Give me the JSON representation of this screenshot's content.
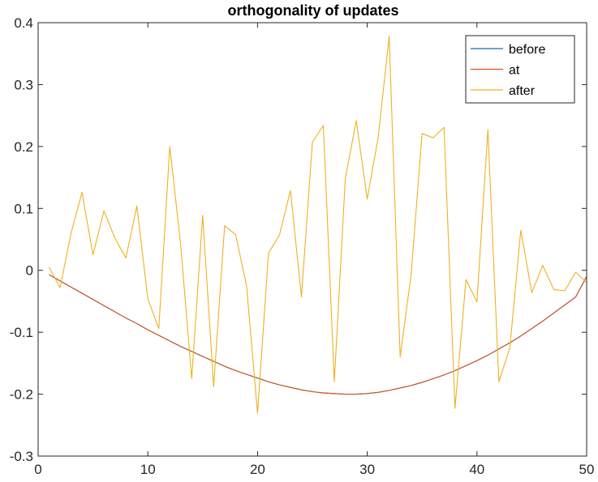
{
  "chart_data": {
    "type": "line",
    "title": "orthogonality of updates",
    "xlabel": "",
    "ylabel": "",
    "xlim": [
      0,
      50
    ],
    "ylim": [
      -0.3,
      0.4
    ],
    "xticks": [
      "0",
      "10",
      "20",
      "30",
      "40",
      "50"
    ],
    "yticks": [
      "-0.3",
      "-0.2",
      "-0.1",
      "0",
      "0.1",
      "0.2",
      "0.3",
      "0.4"
    ],
    "grid": false,
    "legend": "top-right",
    "x": [
      1,
      2,
      3,
      4,
      5,
      6,
      7,
      8,
      9,
      10,
      11,
      12,
      13,
      14,
      15,
      16,
      17,
      18,
      19,
      20,
      21,
      22,
      23,
      24,
      25,
      26,
      27,
      28,
      29,
      30,
      31,
      32,
      33,
      34,
      35,
      36,
      37,
      38,
      39,
      40,
      41,
      42,
      43,
      44,
      45,
      46,
      47,
      48,
      49,
      50
    ],
    "series": [
      {
        "name": "before",
        "color": "#0072BD",
        "values": [
          -0.007,
          -0.017,
          -0.027,
          -0.037,
          -0.047,
          -0.057,
          -0.067,
          -0.077,
          -0.086,
          -0.096,
          -0.105,
          -0.114,
          -0.123,
          -0.131,
          -0.139,
          -0.147,
          -0.155,
          -0.162,
          -0.168,
          -0.174,
          -0.18,
          -0.185,
          -0.189,
          -0.193,
          -0.196,
          -0.198,
          -0.199,
          -0.2,
          -0.2,
          -0.199,
          -0.197,
          -0.194,
          -0.19,
          -0.186,
          -0.181,
          -0.175,
          -0.169,
          -0.162,
          -0.154,
          -0.146,
          -0.137,
          -0.127,
          -0.117,
          -0.106,
          -0.094,
          -0.082,
          -0.069,
          -0.056,
          -0.043,
          -0.01
        ]
      },
      {
        "name": "at",
        "color": "#D95319",
        "values": [
          -0.007,
          -0.017,
          -0.027,
          -0.037,
          -0.047,
          -0.057,
          -0.067,
          -0.077,
          -0.086,
          -0.096,
          -0.105,
          -0.114,
          -0.123,
          -0.131,
          -0.139,
          -0.147,
          -0.155,
          -0.162,
          -0.168,
          -0.174,
          -0.18,
          -0.185,
          -0.189,
          -0.193,
          -0.196,
          -0.198,
          -0.199,
          -0.2,
          -0.2,
          -0.199,
          -0.197,
          -0.194,
          -0.19,
          -0.186,
          -0.181,
          -0.175,
          -0.169,
          -0.162,
          -0.154,
          -0.146,
          -0.137,
          -0.127,
          -0.117,
          -0.106,
          -0.094,
          -0.082,
          -0.069,
          -0.056,
          -0.043,
          -0.01
        ]
      },
      {
        "name": "after",
        "color": "#EDB120",
        "values": [
          0.005,
          -0.028,
          0.06,
          0.126,
          0.025,
          0.096,
          0.052,
          0.02,
          0.104,
          -0.046,
          -0.094,
          0.2,
          0.04,
          -0.175,
          0.089,
          -0.188,
          0.072,
          0.058,
          -0.025,
          -0.231,
          0.028,
          0.057,
          0.129,
          -0.043,
          0.207,
          0.234,
          -0.18,
          0.148,
          0.242,
          0.115,
          0.215,
          0.378,
          -0.14,
          -0.007,
          0.221,
          0.214,
          0.231,
          -0.223,
          -0.015,
          -0.051,
          0.227,
          -0.18,
          -0.125,
          0.065,
          -0.036,
          0.008,
          -0.031,
          -0.033,
          -0.003,
          -0.02
        ]
      }
    ]
  }
}
